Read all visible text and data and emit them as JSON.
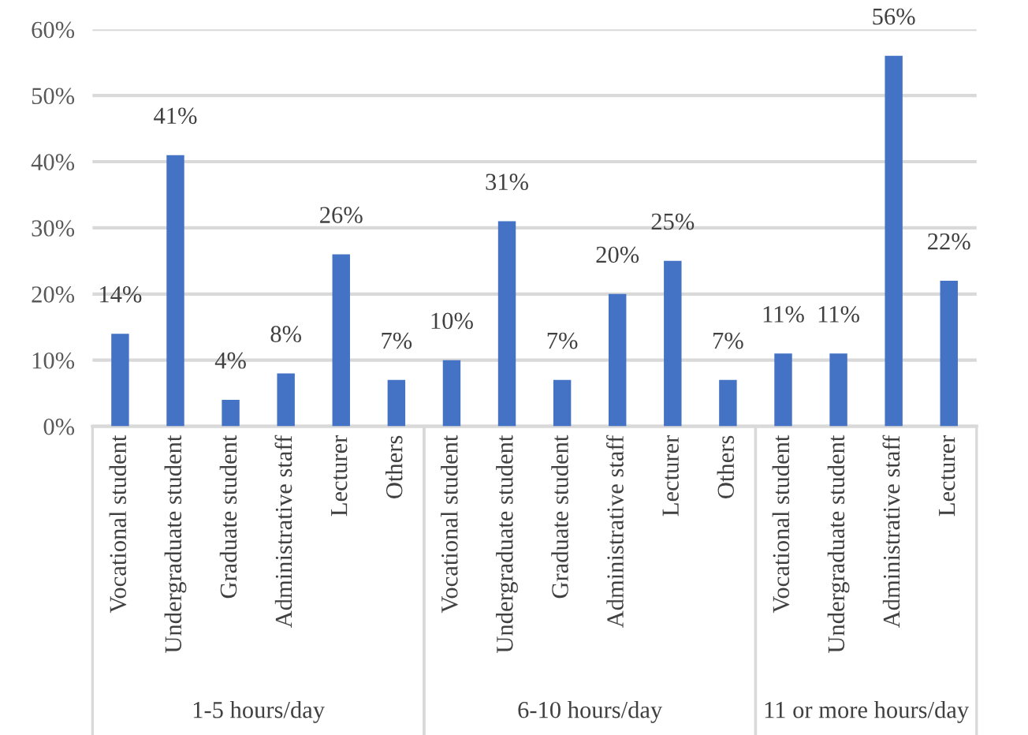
{
  "chart_data": {
    "type": "bar",
    "categories": [
      "Vocational student",
      "Undergraduate student",
      "Graduate student",
      "Administrative staff",
      "Lecturer",
      "Others",
      "Vocational student",
      "Undergraduate student",
      "Graduate student",
      "Administrative staff",
      "Lecturer",
      "Others",
      "Vocational student",
      "Undergraduate student",
      "Administrative staff",
      "Lecturer"
    ],
    "values": [
      14,
      41,
      4,
      8,
      26,
      7,
      10,
      31,
      7,
      20,
      25,
      7,
      11,
      11,
      56,
      22
    ],
    "value_labels": [
      "14%",
      "41%",
      "4%",
      "8%",
      "26%",
      "7%",
      "10%",
      "31%",
      "7%",
      "20%",
      "25%",
      "7%",
      "11%",
      "11%",
      "56%",
      "22%"
    ],
    "color": "#4472c4",
    "ylim": [
      0,
      60
    ],
    "yticks": [
      {
        "value": 0,
        "label": "0%"
      },
      {
        "value": 10,
        "label": "10%"
      },
      {
        "value": 20,
        "label": "20%"
      },
      {
        "value": 30,
        "label": "30%"
      },
      {
        "value": 40,
        "label": "40%"
      },
      {
        "value": 50,
        "label": "50%"
      },
      {
        "value": 60,
        "label": "60%"
      }
    ],
    "grid": "y",
    "annotations": [
      "1-5 hours/day",
      "6-10 hours/day",
      "11 or more hours/day"
    ]
  }
}
